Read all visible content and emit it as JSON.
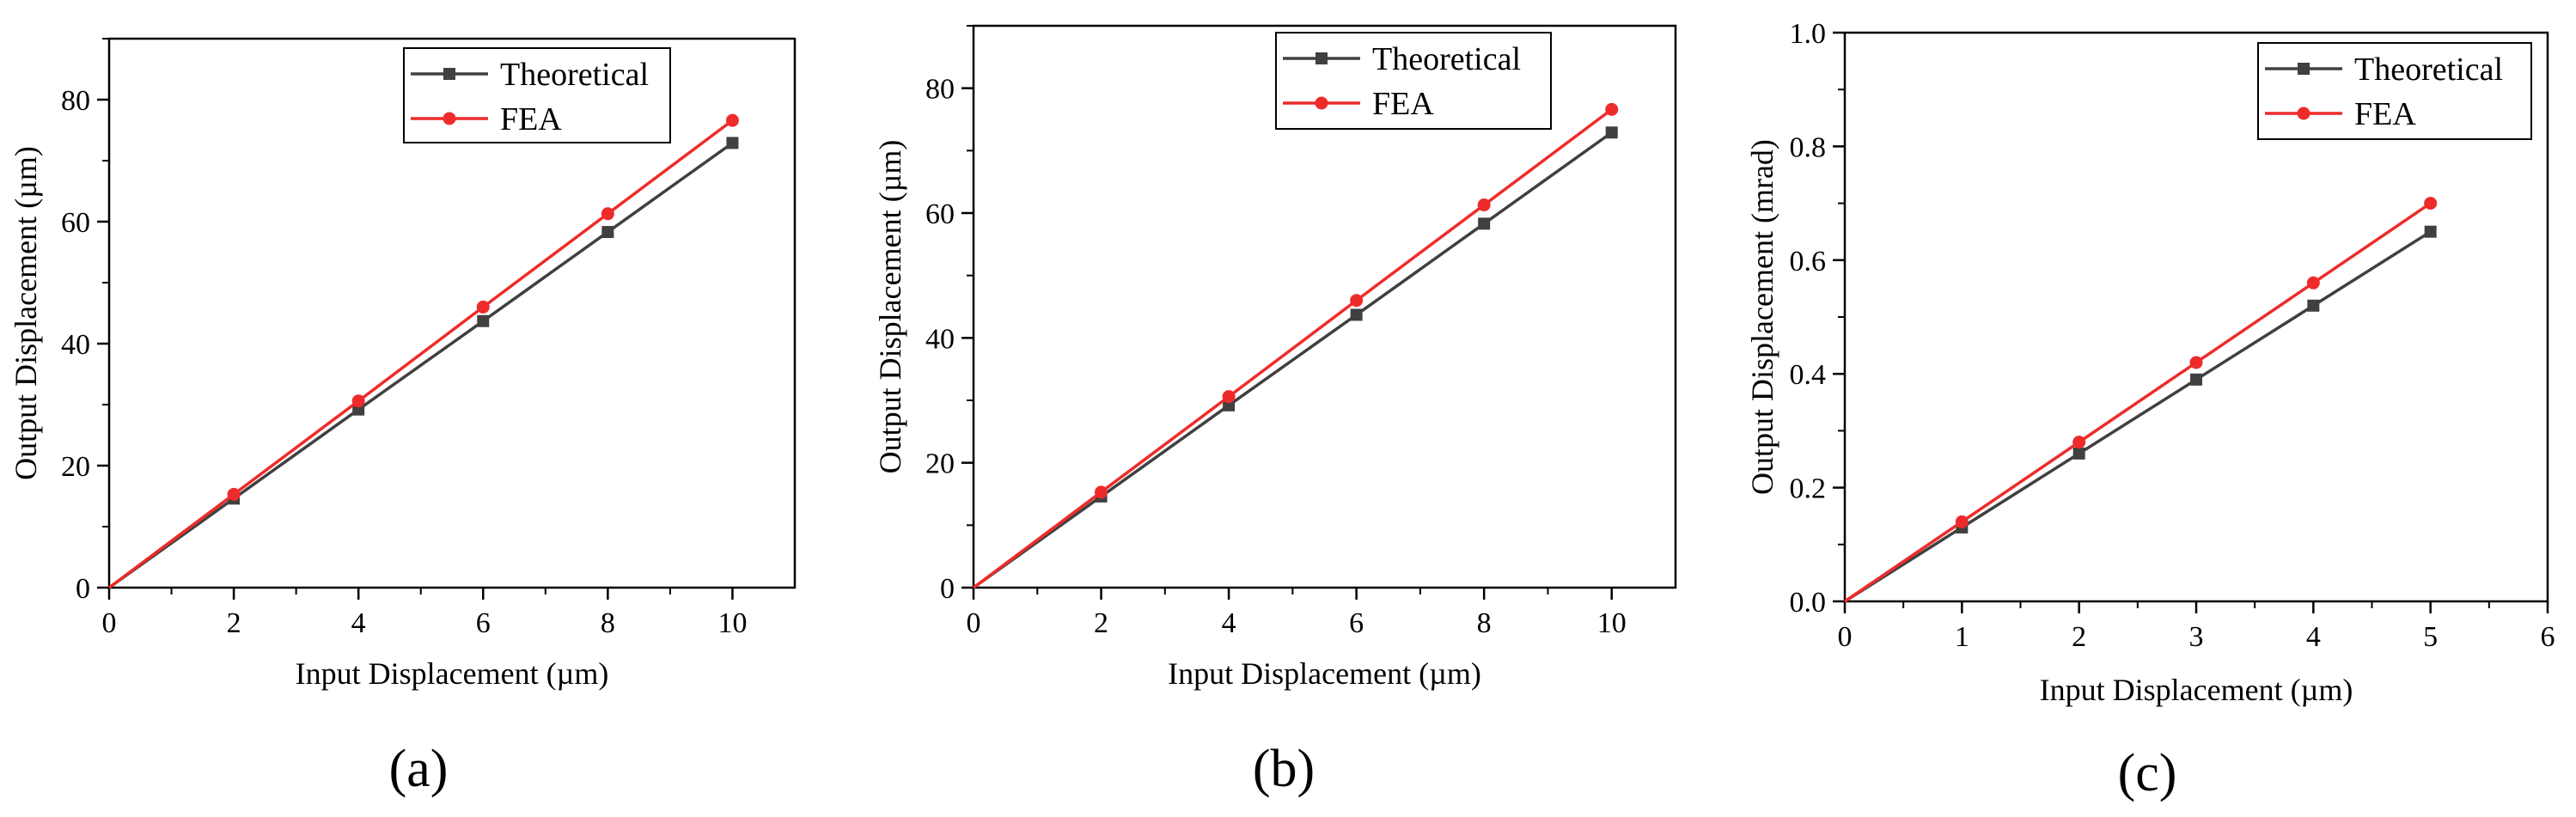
{
  "chart_data": [
    {
      "type": "line",
      "panel_label": "(a)",
      "xlabel": "Input Displacement (µm)",
      "ylabel": "Output Displacement (µm)",
      "xlim": [
        0,
        11
      ],
      "ylim": [
        0,
        90
      ],
      "xticks": [
        0,
        2,
        4,
        6,
        8,
        10
      ],
      "yticks": [
        0,
        20,
        40,
        60,
        80
      ],
      "legend_position": "top-right",
      "series": [
        {
          "name": "Theoretical",
          "marker": "square",
          "color": "#404040",
          "x": [
            0,
            2,
            4,
            6,
            8,
            10
          ],
          "y": [
            0,
            14.6,
            29.2,
            43.7,
            58.3,
            72.9
          ]
        },
        {
          "name": "FEA",
          "marker": "circle",
          "color": "#ee2b2b",
          "x": [
            0,
            2,
            4,
            6,
            8,
            10
          ],
          "y": [
            0,
            15.3,
            30.6,
            46.0,
            61.3,
            76.6
          ]
        }
      ]
    },
    {
      "type": "line",
      "panel_label": "(b)",
      "xlabel": "Input Displacement (µm)",
      "ylabel": "Output Displacement (µm)",
      "xlim": [
        0,
        11
      ],
      "ylim": [
        0,
        90
      ],
      "xticks": [
        0,
        2,
        4,
        6,
        8,
        10
      ],
      "yticks": [
        0,
        20,
        40,
        60,
        80
      ],
      "legend_position": "top-right",
      "series": [
        {
          "name": "Theoretical",
          "marker": "square",
          "color": "#404040",
          "x": [
            0,
            2,
            4,
            6,
            8,
            10
          ],
          "y": [
            0,
            14.6,
            29.2,
            43.7,
            58.3,
            72.9
          ]
        },
        {
          "name": "FEA",
          "marker": "circle",
          "color": "#ee2b2b",
          "x": [
            0,
            2,
            4,
            6,
            8,
            10
          ],
          "y": [
            0,
            15.3,
            30.6,
            46.0,
            61.3,
            76.6
          ]
        }
      ]
    },
    {
      "type": "line",
      "panel_label": "(c)",
      "xlabel": "Input Displacement (µm)",
      "ylabel": "Output Displacement (mrad)",
      "xlim": [
        0,
        6
      ],
      "ylim": [
        0,
        1.0
      ],
      "xticks": [
        0,
        1,
        2,
        3,
        4,
        5,
        6
      ],
      "yticks": [
        0.0,
        0.2,
        0.4,
        0.6,
        0.8,
        1.0
      ],
      "ytick_labels": [
        "0.0",
        "0.2",
        "0.4",
        "0.6",
        "0.8",
        "1.0"
      ],
      "legend_position": "top-right",
      "series": [
        {
          "name": "Theoretical",
          "marker": "square",
          "color": "#404040",
          "x": [
            0,
            1,
            2,
            3,
            4,
            5
          ],
          "y": [
            0,
            0.13,
            0.26,
            0.39,
            0.52,
            0.65
          ]
        },
        {
          "name": "FEA",
          "marker": "circle",
          "color": "#ee2b2b",
          "x": [
            0,
            1,
            2,
            3,
            4,
            5
          ],
          "y": [
            0,
            0.14,
            0.28,
            0.42,
            0.56,
            0.7
          ]
        }
      ]
    }
  ]
}
